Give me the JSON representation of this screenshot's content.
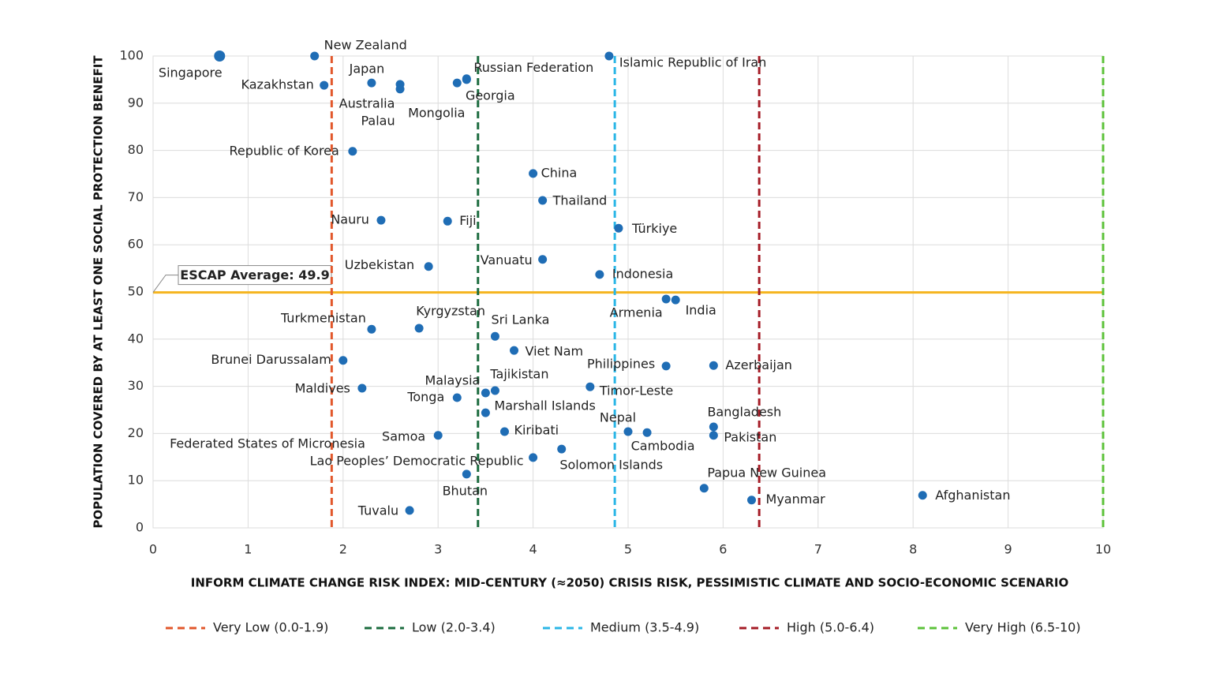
{
  "chart_data": {
    "type": "scatter",
    "x_label": "INFORM CLIMATE CHANGE RISK INDEX: MID-CENTURY (≈2050) CRISIS RISK, PESSIMISTIC CLIMATE AND SOCIO-ECONOMIC SCENARIO",
    "y_label": "POPULATION COVERED BY AT LEAST ONE SOCIAL PROTECTION BENEFIT",
    "xlim": [
      0,
      10
    ],
    "ylim": [
      0,
      100
    ],
    "xticks": [
      0,
      1,
      2,
      3,
      4,
      5,
      6,
      7,
      8,
      9,
      10
    ],
    "yticks": [
      0,
      10,
      20,
      30,
      40,
      50,
      60,
      70,
      80,
      90,
      100
    ],
    "grid": true,
    "color": "#1f6db5",
    "labels": [
      "Singapore",
      "New Zealand",
      "Kazakhstan",
      "Japan",
      "Australia",
      "Palau",
      "Mongolia",
      "Georgia",
      "Russian Federation",
      "Islamic Republic of Iran",
      "Republic of Korea",
      "China",
      "Thailand",
      "Nauru",
      "Fiji",
      "Türkiye",
      "Vanuatu",
      "Uzbekistan",
      "Indonesia",
      "Armenia",
      "India",
      "Turkmenistan",
      "Kyrgyzstan",
      "Sri Lanka",
      "Viet Nam",
      "Brunei Darussalam",
      "Philippines",
      "Azerbaijan",
      "Maldives",
      "Timor-Leste",
      "Tajikistan",
      "Malaysia",
      "Tonga",
      "Marshall Islands",
      "Bangladesh",
      "Pakistan",
      "Kiribati",
      "Nepal",
      "Cambodia",
      "Samoa",
      "Solomon Islands",
      "Lao Peoples’ Democratic Republic",
      "Federated States of Micronesia",
      "Bhutan",
      "Papua New Guinea",
      "Myanmar",
      "Afghanistan",
      "Tuvalu"
    ],
    "x": [
      0.7,
      1.7,
      1.8,
      2.3,
      2.6,
      2.6,
      3.2,
      3.3,
      3.3,
      4.8,
      2.1,
      4.0,
      4.1,
      2.4,
      3.1,
      4.9,
      4.1,
      2.9,
      4.7,
      5.4,
      5.5,
      2.3,
      2.8,
      3.6,
      3.8,
      2.0,
      5.4,
      5.9,
      2.2,
      4.6,
      3.6,
      3.5,
      3.2,
      3.5,
      5.9,
      5.9,
      3.7,
      5.0,
      5.2,
      3.0,
      4.3,
      4.0,
      null,
      3.3,
      5.8,
      6.3,
      8.1,
      2.7
    ],
    "y": [
      100,
      100,
      93.8,
      94.3,
      94,
      93,
      94.3,
      95,
      95.2,
      100,
      79.8,
      75.1,
      69.4,
      65.2,
      65,
      63.5,
      56.9,
      55.4,
      53.7,
      48.5,
      48.3,
      42.1,
      42.3,
      40.6,
      37.6,
      35.5,
      34.3,
      34.4,
      29.6,
      29.9,
      29.1,
      28.6,
      27.6,
      24.4,
      21.4,
      19.6,
      20.4,
      20.4,
      20.2,
      19.6,
      16.7,
      14.9,
      null,
      11.4,
      8.4,
      5.9,
      6.9,
      3.7
    ],
    "average": {
      "label": "ESCAP Average: 49.9",
      "value": 49.9,
      "color": "#f5b51f"
    },
    "risk_lines": [
      {
        "label": "Very Low (0.0-1.9)",
        "value": 1.88,
        "color": "#e2572b"
      },
      {
        "label": "Low (2.0-3.4)",
        "value": 3.42,
        "color": "#1b6b3e"
      },
      {
        "label": "Medium (3.5-4.9)",
        "value": 4.86,
        "color": "#2bb6e6"
      },
      {
        "label": "High (5.0-6.4)",
        "value": 6.38,
        "color": "#a51c26"
      },
      {
        "label": "Very High (6.5-10)",
        "value": 10,
        "color": "#5cc23a"
      }
    ]
  }
}
